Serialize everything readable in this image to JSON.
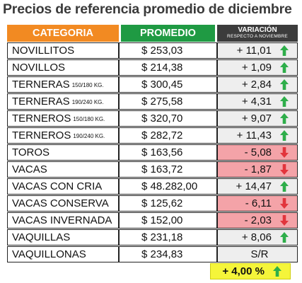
{
  "title": "Precios de referencia promedio de diciembre",
  "header": {
    "categoria": "CATEGORIA",
    "promedio": "PROMEDIO",
    "variacion": "VARIACIÓN",
    "variacion_sub": "RESPECTO A NOVIEMBRE"
  },
  "colors": {
    "categoria_header": "#f28a22",
    "promedio_header": "#1f9a43",
    "variacion_header": "#3c3c3c",
    "positive_bg": "#eeeeee",
    "negative_bg": "#f4a3a8",
    "up_arrow": "#2eae4a",
    "down_arrow": "#e2343c",
    "total_bg": "#f5f53a"
  },
  "rows": [
    {
      "name": "NOVILLITOS",
      "sub": "",
      "price": "$ 253,03",
      "variation": "+ 11,01",
      "trend": "up-arrow-icon"
    },
    {
      "name": "NOVILLOS",
      "sub": "",
      "price": "$ 214,38",
      "variation": "+ 1,09",
      "trend": "up-arrow-icon"
    },
    {
      "name": "TERNERAS",
      "sub": "150/180 KG.",
      "price": "$ 300,45",
      "variation": "+ 2,84",
      "trend": "up-arrow-icon"
    },
    {
      "name": "TERNERAS",
      "sub": "190/240 KG.",
      "price": "$ 275,58",
      "variation": "+ 4,31",
      "trend": "up-arrow-icon"
    },
    {
      "name": "TERNEROS",
      "sub": "150/180 KG.",
      "price": "$ 320,70",
      "variation": "+ 9,07",
      "trend": "up-arrow-icon"
    },
    {
      "name": "TERNEROS",
      "sub": "190/240 KG.",
      "price": "$ 282,72",
      "variation": "+ 11,43",
      "trend": "up-arrow-icon"
    },
    {
      "name": "TOROS",
      "sub": "",
      "price": "$ 163,56",
      "variation": "- 5,08",
      "trend": "down-arrow-icon"
    },
    {
      "name": "VACAS",
      "sub": "",
      "price": "$ 163,72",
      "variation": "- 1,87",
      "trend": "down-arrow-icon"
    },
    {
      "name": "VACAS CON CRIA",
      "sub": "",
      "price": "$ 48.282,00",
      "variation": "+ 14,47",
      "trend": "up-arrow-icon"
    },
    {
      "name": "VACAS CONSERVA",
      "sub": "",
      "price": "$ 125,62",
      "variation": "- 6,11",
      "trend": "down-arrow-icon"
    },
    {
      "name": "VACAS INVERNADA",
      "sub": "",
      "price": "$ 152,00",
      "variation": "- 2,03",
      "trend": "down-arrow-icon"
    },
    {
      "name": "VAQUILLAS",
      "sub": "",
      "price": "$ 231,18",
      "variation": "+ 8,06",
      "trend": "up-arrow-icon"
    },
    {
      "name": "VAQUILLONAS",
      "sub": "",
      "price": "$ 234,83",
      "variation": "S/R",
      "trend": ""
    }
  ],
  "total": {
    "variation": "+ 4,00 %",
    "trend": "up-arrow-icon"
  }
}
